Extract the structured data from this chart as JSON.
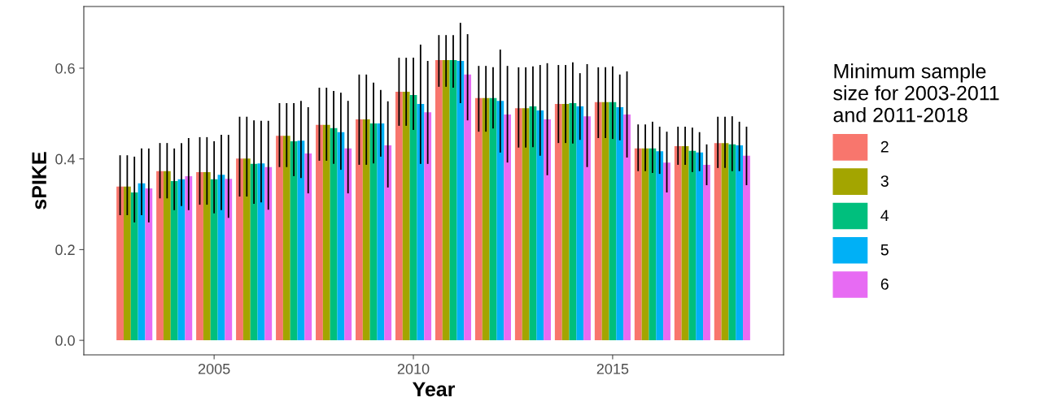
{
  "chart_data": {
    "type": "bar",
    "xlabel": "Year",
    "ylabel": "sPIKE",
    "legend_title": "Minimum sample\nsize for 2003-2011\nand 2011-2018",
    "x": [
      2003,
      2004,
      2005,
      2006,
      2007,
      2008,
      2009,
      2010,
      2011,
      2012,
      2013,
      2014,
      2015,
      2016,
      2017,
      2018
    ],
    "xlim": [
      2001.73,
      2019.29
    ],
    "xticks": [
      2005,
      2010,
      2015
    ],
    "ylim": [
      -0.032,
      0.736
    ],
    "yticks": [
      {
        "value": 0,
        "label": "0.0"
      },
      {
        "value": 0.2,
        "label": "0.2"
      },
      {
        "value": 0.4,
        "label": "0.4"
      },
      {
        "value": 0.6,
        "label": "0.6"
      }
    ],
    "grid": false,
    "legend": "right",
    "series": [
      {
        "name": "2",
        "color": "#f8766d",
        "values": [
          0.339,
          0.373,
          0.371,
          0.401,
          0.451,
          0.475,
          0.487,
          0.548,
          0.618,
          0.534,
          0.512,
          0.521,
          0.525,
          0.423,
          0.428,
          0.435
        ],
        "errors": [
          [
            0.276,
            0.408
          ],
          [
            0.313,
            0.435
          ],
          [
            0.299,
            0.448
          ],
          [
            0.317,
            0.493
          ],
          [
            0.382,
            0.523
          ],
          [
            0.396,
            0.557
          ],
          [
            0.387,
            0.586
          ],
          [
            0.473,
            0.623
          ],
          [
            0.559,
            0.673
          ],
          [
            0.46,
            0.605
          ],
          [
            0.425,
            0.602
          ],
          [
            0.435,
            0.607
          ],
          [
            0.446,
            0.602
          ],
          [
            0.373,
            0.476
          ],
          [
            0.387,
            0.471
          ],
          [
            0.38,
            0.493
          ]
        ]
      },
      {
        "name": "3",
        "color": "#a3a500",
        "values": [
          0.339,
          0.373,
          0.371,
          0.401,
          0.451,
          0.475,
          0.487,
          0.548,
          0.618,
          0.534,
          0.512,
          0.521,
          0.525,
          0.423,
          0.428,
          0.435
        ],
        "errors": [
          [
            0.276,
            0.408
          ],
          [
            0.313,
            0.435
          ],
          [
            0.299,
            0.448
          ],
          [
            0.317,
            0.493
          ],
          [
            0.382,
            0.523
          ],
          [
            0.396,
            0.557
          ],
          [
            0.387,
            0.586
          ],
          [
            0.473,
            0.623
          ],
          [
            0.559,
            0.673
          ],
          [
            0.46,
            0.605
          ],
          [
            0.425,
            0.602
          ],
          [
            0.435,
            0.607
          ],
          [
            0.446,
            0.602
          ],
          [
            0.373,
            0.476
          ],
          [
            0.387,
            0.471
          ],
          [
            0.38,
            0.493
          ]
        ]
      },
      {
        "name": "4",
        "color": "#00bf7d",
        "values": [
          0.326,
          0.351,
          0.355,
          0.389,
          0.439,
          0.468,
          0.478,
          0.541,
          0.618,
          0.534,
          0.516,
          0.523,
          0.525,
          0.423,
          0.418,
          0.432
        ],
        "errors": [
          [
            0.26,
            0.405
          ],
          [
            0.287,
            0.423
          ],
          [
            0.28,
            0.439
          ],
          [
            0.301,
            0.485
          ],
          [
            0.362,
            0.523
          ],
          [
            0.389,
            0.55
          ],
          [
            0.39,
            0.568
          ],
          [
            0.464,
            0.623
          ],
          [
            0.557,
            0.673
          ],
          [
            0.467,
            0.602
          ],
          [
            0.426,
            0.604
          ],
          [
            0.434,
            0.613
          ],
          [
            0.444,
            0.604
          ],
          [
            0.369,
            0.482
          ],
          [
            0.371,
            0.469
          ],
          [
            0.373,
            0.494
          ]
        ]
      },
      {
        "name": "5",
        "color": "#00b0f6",
        "values": [
          0.346,
          0.355,
          0.365,
          0.39,
          0.44,
          0.459,
          0.478,
          0.521,
          0.616,
          0.528,
          0.507,
          0.516,
          0.514,
          0.417,
          0.414,
          0.43
        ],
        "errors": [
          [
            0.276,
            0.423
          ],
          [
            0.296,
            0.435
          ],
          [
            0.287,
            0.453
          ],
          [
            0.304,
            0.484
          ],
          [
            0.358,
            0.528
          ],
          [
            0.376,
            0.546
          ],
          [
            0.405,
            0.552
          ],
          [
            0.389,
            0.652
          ],
          [
            0.523,
            0.7
          ],
          [
            0.414,
            0.641
          ],
          [
            0.407,
            0.607
          ],
          [
            0.442,
            0.589
          ],
          [
            0.441,
            0.586
          ],
          [
            0.367,
            0.471
          ],
          [
            0.373,
            0.459
          ],
          [
            0.373,
            0.482
          ]
        ]
      },
      {
        "name": "6",
        "color": "#e76bf3",
        "values": [
          0.335,
          0.362,
          0.356,
          0.382,
          0.412,
          0.423,
          0.43,
          0.503,
          0.586,
          0.498,
          0.487,
          0.494,
          0.498,
          0.392,
          0.387,
          0.407
        ],
        "errors": [
          [
            0.26,
            0.423
          ],
          [
            0.287,
            0.446
          ],
          [
            0.27,
            0.453
          ],
          [
            0.288,
            0.484
          ],
          [
            0.324,
            0.514
          ],
          [
            0.324,
            0.528
          ],
          [
            0.337,
            0.527
          ],
          [
            0.389,
            0.616
          ],
          [
            0.485,
            0.675
          ],
          [
            0.392,
            0.605
          ],
          [
            0.364,
            0.611
          ],
          [
            0.382,
            0.609
          ],
          [
            0.403,
            0.593
          ],
          [
            0.326,
            0.46
          ],
          [
            0.342,
            0.432
          ],
          [
            0.342,
            0.471
          ]
        ]
      }
    ]
  }
}
